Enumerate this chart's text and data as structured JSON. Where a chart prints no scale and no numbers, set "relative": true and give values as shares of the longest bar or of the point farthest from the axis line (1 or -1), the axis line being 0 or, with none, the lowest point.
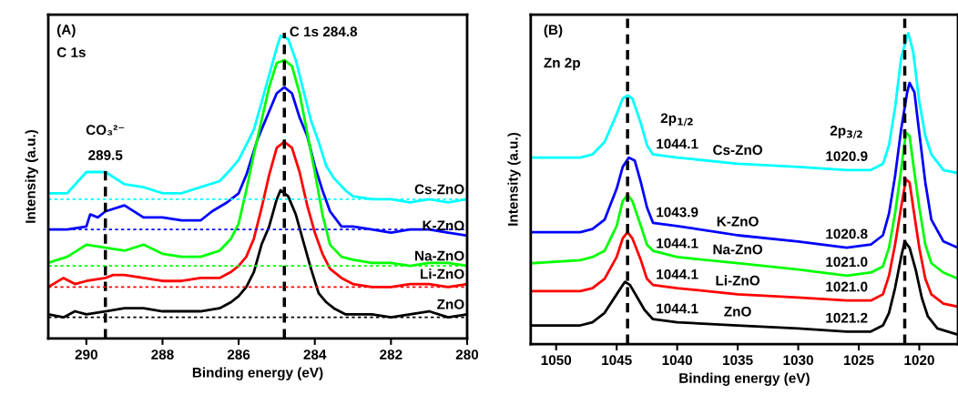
{
  "chart_data": [
    {
      "type": "line",
      "relative": true,
      "xlabel": "Binding energy (eV)",
      "ylabel": "Intensity (a.u.)",
      "xlim": [
        291,
        280
      ],
      "xticks": [
        290,
        288,
        286,
        284,
        282,
        280
      ],
      "tick_labels": "x",
      "grid": false,
      "legend": false,
      "line_style": "solid",
      "marker": "none",
      "series": [
        {
          "name": "Cs-ZnO",
          "color": "#00ffff",
          "x": [
            291,
            290.5,
            290,
            289.5,
            289,
            288.5,
            288,
            287.5,
            287,
            286.5,
            286.2,
            286,
            285.8,
            285.6,
            285.4,
            285.2,
            285,
            284.9,
            284.7,
            284.5,
            284.3,
            284.1,
            283.9,
            283.7,
            283.5,
            283.2,
            283,
            282.5,
            282,
            281.5,
            281,
            280.5,
            280
          ],
          "values": [
            0.48,
            0.48,
            0.55,
            0.55,
            0.51,
            0.5,
            0.48,
            0.48,
            0.5,
            0.52,
            0.56,
            0.59,
            0.64,
            0.69,
            0.78,
            0.87,
            0.96,
            1.0,
            0.99,
            0.92,
            0.82,
            0.72,
            0.65,
            0.57,
            0.53,
            0.49,
            0.47,
            0.46,
            0.46,
            0.45,
            0.46,
            0.45,
            0.46
          ]
        },
        {
          "name": "K-ZnO",
          "color": "#0000ff",
          "x": [
            291,
            290.5,
            290,
            289.9,
            289.7,
            289.5,
            289,
            288.5,
            288,
            287.5,
            287,
            286.7,
            286.3,
            286,
            285.8,
            285.5,
            285.2,
            285,
            284.8,
            284.6,
            284.4,
            284.2,
            284,
            283.8,
            283.6,
            283.3,
            283,
            282.5,
            282,
            281.5,
            281,
            280.5,
            280
          ],
          "values": [
            0.36,
            0.36,
            0.37,
            0.41,
            0.4,
            0.42,
            0.44,
            0.4,
            0.4,
            0.39,
            0.39,
            0.42,
            0.45,
            0.48,
            0.54,
            0.66,
            0.75,
            0.81,
            0.83,
            0.81,
            0.73,
            0.67,
            0.57,
            0.49,
            0.42,
            0.37,
            0.37,
            0.36,
            0.35,
            0.36,
            0.36,
            0.35,
            0.34
          ]
        },
        {
          "name": "Na-ZnO",
          "color": "#00ff00",
          "x": [
            291,
            290.5,
            290,
            289.5,
            289,
            288.5,
            288,
            287.5,
            287,
            286.5,
            286.2,
            286,
            285.8,
            285.6,
            285.4,
            285.2,
            285,
            284.8,
            284.6,
            284.4,
            284.2,
            284,
            283.8,
            283.6,
            283.3,
            283,
            282.5,
            282,
            281.5,
            281,
            280.5,
            280
          ],
          "values": [
            0.25,
            0.27,
            0.31,
            0.3,
            0.29,
            0.31,
            0.28,
            0.27,
            0.27,
            0.29,
            0.33,
            0.38,
            0.49,
            0.61,
            0.72,
            0.83,
            0.91,
            0.92,
            0.9,
            0.81,
            0.68,
            0.55,
            0.41,
            0.31,
            0.27,
            0.26,
            0.25,
            0.25,
            0.24,
            0.25,
            0.25,
            0.24
          ]
        },
        {
          "name": "Li-ZnO",
          "color": "#ff0000",
          "x": [
            291,
            290.6,
            290.3,
            290,
            289.5,
            289.3,
            289,
            288.5,
            288,
            287.5,
            287,
            286.5,
            286.2,
            286,
            285.8,
            285.6,
            285.4,
            285.2,
            285,
            284.8,
            284.6,
            284.4,
            284.2,
            284,
            283.8,
            283.6,
            283.3,
            283,
            282.5,
            282,
            281.5,
            281,
            280.5,
            280
          ],
          "values": [
            0.17,
            0.2,
            0.18,
            0.19,
            0.2,
            0.21,
            0.21,
            0.2,
            0.19,
            0.19,
            0.2,
            0.2,
            0.22,
            0.24,
            0.27,
            0.33,
            0.43,
            0.54,
            0.63,
            0.65,
            0.63,
            0.55,
            0.44,
            0.35,
            0.28,
            0.23,
            0.2,
            0.18,
            0.17,
            0.17,
            0.18,
            0.18,
            0.17,
            0.18
          ]
        },
        {
          "name": "ZnO",
          "color": "#000000",
          "x": [
            291,
            290.6,
            290.3,
            290,
            289.5,
            289,
            288.5,
            288,
            287.5,
            287,
            286.5,
            286.2,
            286,
            285.8,
            285.6,
            285.4,
            285.2,
            285,
            284.9,
            284.7,
            284.5,
            284.3,
            284.1,
            283.9,
            283.7,
            283.5,
            283.2,
            283,
            282.5,
            282,
            281.5,
            281,
            280.5,
            280
          ],
          "values": [
            0.08,
            0.07,
            0.09,
            0.08,
            0.09,
            0.1,
            0.1,
            0.09,
            0.09,
            0.09,
            0.1,
            0.12,
            0.14,
            0.17,
            0.22,
            0.31,
            0.37,
            0.46,
            0.49,
            0.47,
            0.41,
            0.32,
            0.23,
            0.15,
            0.12,
            0.1,
            0.08,
            0.08,
            0.08,
            0.07,
            0.08,
            0.09,
            0.07,
            0.08
          ]
        }
      ],
      "ref_lines": [
        {
          "axis": "x",
          "value": 284.8,
          "color": "#000000",
          "line_style": "dashed"
        },
        {
          "axis": "x",
          "value": 289.5,
          "color": "#000000",
          "line_style": "dashed"
        },
        {
          "axis": "y",
          "value": 0.46,
          "color": "#00ffff",
          "line_style": "dotted"
        },
        {
          "axis": "y",
          "value": 0.36,
          "color": "#0000ff",
          "line_style": "dotted"
        },
        {
          "axis": "y",
          "value": 0.24,
          "color": "#00ff00",
          "line_style": "dotted"
        },
        {
          "axis": "y",
          "value": 0.17,
          "color": "#ff0000",
          "line_style": "dotted"
        },
        {
          "axis": "y",
          "value": 0.07,
          "color": "#000000",
          "line_style": "dotted"
        }
      ],
      "annotations": [
        "(A)",
        "C 1s",
        {
          "text": "C 1s 284.8",
          "x": 284.8,
          "y": 1.01
        },
        {
          "text": "289.5",
          "x": 289.5,
          "y": 0.56
        },
        {
          "text": "CO₃²⁻",
          "x": 289.5,
          "y": 0.56
        }
      ]
    },
    {
      "type": "line",
      "relative": true,
      "xlabel": "Binding energy (eV)",
      "ylabel": "Intensity (a.u.)",
      "xlim": [
        1052.1,
        1016.8
      ],
      "xticks": [
        1050,
        1045,
        1040,
        1035,
        1030,
        1025,
        1020
      ],
      "tick_labels": "x",
      "grid": false,
      "legend": false,
      "line_style": "solid",
      "marker": "none",
      "series": [
        {
          "name": "Cs-ZnO",
          "color": "#00ffff",
          "x": [
            1052,
            1048,
            1047,
            1046,
            1045,
            1044.5,
            1044.1,
            1043.7,
            1043,
            1042.5,
            1042,
            1040,
            1035,
            1030,
            1026,
            1024,
            1023,
            1022.5,
            1022,
            1021.5,
            1021,
            1020.9,
            1020.5,
            1020,
            1019.5,
            1019,
            1018,
            1016.8
          ],
          "values": [
            0.6,
            0.6,
            0.61,
            0.65,
            0.74,
            0.79,
            0.8,
            0.79,
            0.71,
            0.64,
            0.61,
            0.6,
            0.58,
            0.57,
            0.56,
            0.56,
            0.58,
            0.64,
            0.76,
            0.92,
            0.99,
            1.0,
            0.94,
            0.78,
            0.67,
            0.61,
            0.56,
            0.55
          ]
        },
        {
          "name": "K-ZnO",
          "color": "#0000ff",
          "x": [
            1052,
            1048,
            1047,
            1046,
            1045,
            1044.5,
            1044,
            1043.5,
            1043,
            1042.5,
            1042,
            1040,
            1035,
            1030,
            1026,
            1024,
            1023,
            1022.5,
            1022,
            1021.5,
            1021,
            1020.8,
            1020.4,
            1020,
            1019.5,
            1019,
            1018,
            1016.8
          ],
          "values": [
            0.36,
            0.36,
            0.37,
            0.4,
            0.5,
            0.57,
            0.6,
            0.59,
            0.52,
            0.44,
            0.39,
            0.38,
            0.35,
            0.33,
            0.31,
            0.32,
            0.35,
            0.42,
            0.54,
            0.69,
            0.81,
            0.84,
            0.81,
            0.68,
            0.52,
            0.4,
            0.33,
            0.31
          ]
        },
        {
          "name": "Na-ZnO",
          "color": "#00ff00",
          "x": [
            1052,
            1048,
            1047,
            1046,
            1045,
            1044.5,
            1044.1,
            1043.7,
            1043,
            1042.5,
            1042,
            1040,
            1035,
            1030,
            1026,
            1024,
            1023,
            1022.5,
            1022,
            1021.5,
            1021.1,
            1020.8,
            1020.5,
            1020,
            1019.5,
            1019,
            1018,
            1016.8
          ],
          "values": [
            0.26,
            0.27,
            0.28,
            0.3,
            0.38,
            0.46,
            0.48,
            0.46,
            0.38,
            0.32,
            0.3,
            0.28,
            0.26,
            0.24,
            0.22,
            0.23,
            0.25,
            0.31,
            0.42,
            0.56,
            0.68,
            0.67,
            0.58,
            0.44,
            0.32,
            0.26,
            0.23,
            0.21
          ]
        },
        {
          "name": "Li-ZnO",
          "color": "#ff0000",
          "x": [
            1052,
            1048,
            1047,
            1046,
            1045,
            1044.5,
            1044.1,
            1043.7,
            1043,
            1042.5,
            1042,
            1040,
            1035,
            1030,
            1026,
            1024,
            1023,
            1022.5,
            1022,
            1021.5,
            1021.1,
            1020.8,
            1020.5,
            1020,
            1019.5,
            1019,
            1018,
            1016.8
          ],
          "values": [
            0.17,
            0.17,
            0.18,
            0.21,
            0.28,
            0.34,
            0.36,
            0.34,
            0.27,
            0.21,
            0.19,
            0.18,
            0.16,
            0.15,
            0.14,
            0.14,
            0.16,
            0.22,
            0.32,
            0.44,
            0.53,
            0.52,
            0.44,
            0.31,
            0.21,
            0.16,
            0.13,
            0.12
          ]
        },
        {
          "name": "ZnO",
          "color": "#000000",
          "x": [
            1052,
            1048,
            1047,
            1046,
            1045,
            1044.5,
            1044.3,
            1043.9,
            1043.3,
            1042.7,
            1042,
            1040,
            1035,
            1030,
            1026,
            1024,
            1023,
            1022.5,
            1022,
            1021.5,
            1021.2,
            1020.8,
            1020.3,
            1019.8,
            1019.3,
            1018.5,
            1016.8
          ],
          "values": [
            0.06,
            0.06,
            0.07,
            0.1,
            0.16,
            0.19,
            0.2,
            0.19,
            0.15,
            0.11,
            0.08,
            0.07,
            0.06,
            0.05,
            0.04,
            0.04,
            0.06,
            0.1,
            0.18,
            0.28,
            0.33,
            0.31,
            0.24,
            0.15,
            0.09,
            0.05,
            0.03
          ]
        }
      ],
      "ref_lines": [
        {
          "axis": "x",
          "value": 1044.1,
          "color": "#000000",
          "line_style": "dashed"
        },
        {
          "axis": "x",
          "value": 1021.2,
          "color": "#000000",
          "line_style": "dashed"
        }
      ],
      "annotations": [
        "(B)",
        "Zn 2p",
        {
          "text": "1044.1",
          "x": 1040,
          "y": 0.6
        },
        {
          "text": "2p$_{1/2}$",
          "x": 1040,
          "y": 0.6
        },
        {
          "text": "1020.9",
          "x": 1026,
          "y": 0.56
        },
        {
          "text": "2p$_{3/2}$",
          "x": 1026,
          "y": 0.56
        },
        {
          "text": "1043.9",
          "x": 1040,
          "y": 0.38
        },
        {
          "text": "1020.8",
          "x": 1026,
          "y": 0.31
        },
        {
          "text": "1044.1",
          "x": 1040,
          "y": 0.28
        },
        {
          "text": "1021.0",
          "x": 1026,
          "y": 0.22
        },
        {
          "text": "1044.1",
          "x": 1040,
          "y": 0.18
        },
        {
          "text": "1021.0",
          "x": 1026,
          "y": 0.14
        },
        {
          "text": "1044.1",
          "x": 1040,
          "y": 0.07
        },
        {
          "text": "1021.2",
          "x": 1026,
          "y": 0.04
        }
      ]
    }
  ]
}
